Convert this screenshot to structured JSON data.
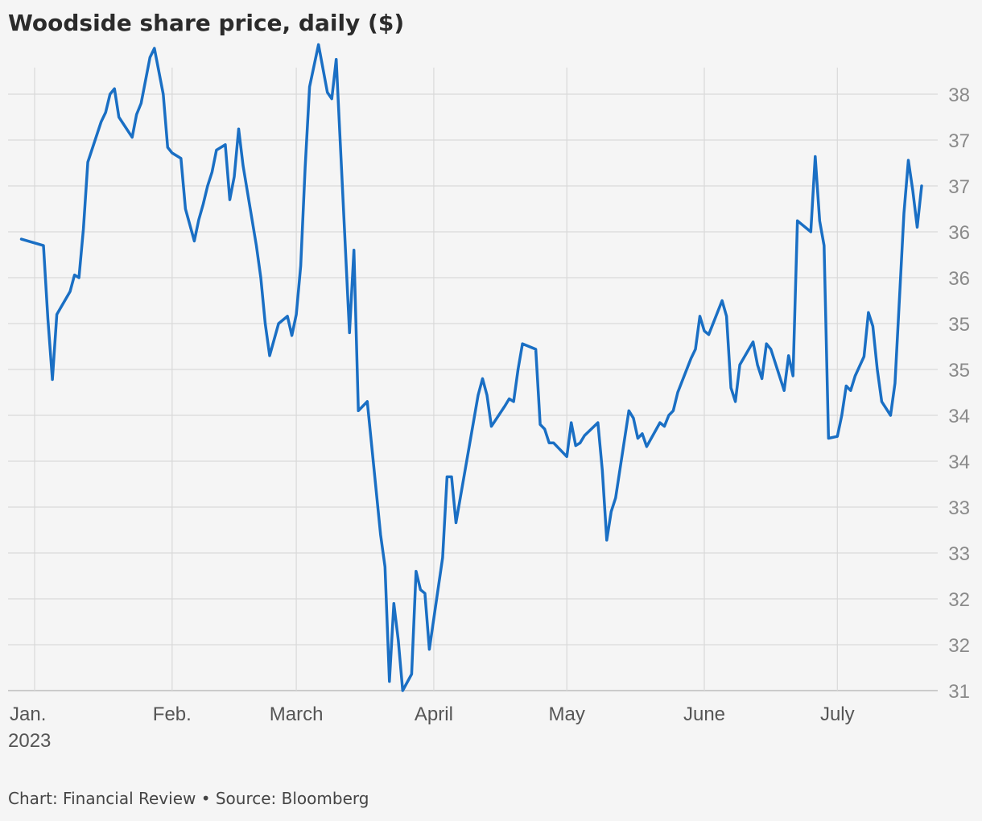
{
  "chart_data": {
    "type": "line",
    "title": "Woodside share price, daily ($)",
    "source": "Chart: Financial Review • Source: Bloomberg",
    "colors": {
      "line": "#1a6fc4",
      "grid": "#d9d9d9",
      "axis": "#cfcfcf"
    },
    "y_tick_values": [
      31,
      31.5,
      32,
      32.5,
      33,
      33.5,
      34,
      34.5,
      35,
      35.5,
      36,
      36.5,
      37,
      37.5,
      38
    ],
    "y_tick_labels": [
      "31",
      "32",
      "32",
      "33",
      "33",
      "34",
      "34",
      "35",
      "35",
      "36",
      "36",
      "37",
      "37",
      "38",
      "38"
    ],
    "ylim": [
      31,
      37.5
    ],
    "x_ticks": [
      {
        "date": "2023-01-01",
        "label": "Jan.",
        "sublabel": "2023"
      },
      {
        "date": "2023-02-01",
        "label": "Feb."
      },
      {
        "date": "2023-03-01",
        "label": "March"
      },
      {
        "date": "2023-04-01",
        "label": "April"
      },
      {
        "date": "2023-05-01",
        "label": "May"
      },
      {
        "date": "2023-06-01",
        "label": "June"
      },
      {
        "date": "2023-07-01",
        "label": "July"
      }
    ],
    "xlim": [
      "2022-12-30",
      "2023-07-20"
    ],
    "series": [
      {
        "points": [
          [
            "2022-12-29",
            35.92
          ],
          [
            "2023-01-03",
            35.85
          ],
          [
            "2023-01-04",
            35.05
          ],
          [
            "2023-01-05",
            34.39
          ],
          [
            "2023-01-06",
            35.1
          ],
          [
            "2023-01-09",
            35.35
          ],
          [
            "2023-01-10",
            35.53
          ],
          [
            "2023-01-11",
            35.5
          ],
          [
            "2023-01-12",
            36.03
          ],
          [
            "2023-01-13",
            36.76
          ],
          [
            "2023-01-16",
            37.2
          ],
          [
            "2023-01-17",
            37.3
          ],
          [
            "2023-01-18",
            37.5
          ],
          [
            "2023-01-19",
            37.56
          ],
          [
            "2023-01-20",
            37.25
          ],
          [
            "2023-01-23",
            37.03
          ],
          [
            "2023-01-24",
            37.28
          ],
          [
            "2023-01-25",
            37.4
          ],
          [
            "2023-01-27",
            37.9
          ],
          [
            "2023-01-28",
            38.0
          ],
          [
            "2023-01-30",
            37.5
          ],
          [
            "2023-01-31",
            36.92
          ],
          [
            "2023-02-01",
            36.86
          ],
          [
            "2023-02-03",
            36.8
          ],
          [
            "2023-02-04",
            36.25
          ],
          [
            "2023-02-06",
            35.9
          ],
          [
            "2023-02-07",
            36.13
          ],
          [
            "2023-02-08",
            36.3
          ],
          [
            "2023-02-09",
            36.5
          ],
          [
            "2023-02-10",
            36.65
          ],
          [
            "2023-02-11",
            36.89
          ],
          [
            "2023-02-13",
            36.95
          ],
          [
            "2023-02-14",
            36.35
          ],
          [
            "2023-02-15",
            36.6
          ],
          [
            "2023-02-16",
            37.12
          ],
          [
            "2023-02-17",
            36.72
          ],
          [
            "2023-02-20",
            35.85
          ],
          [
            "2023-02-21",
            35.5
          ],
          [
            "2023-02-22",
            35.0
          ],
          [
            "2023-02-23",
            34.65
          ],
          [
            "2023-02-25",
            35.0
          ],
          [
            "2023-02-27",
            35.08
          ],
          [
            "2023-02-28",
            34.87
          ],
          [
            "2023-03-01",
            35.1
          ],
          [
            "2023-03-02",
            35.63
          ],
          [
            "2023-03-03",
            36.7
          ],
          [
            "2023-03-04",
            37.58
          ],
          [
            "2023-03-06",
            38.04
          ],
          [
            "2023-03-08",
            37.52
          ],
          [
            "2023-03-09",
            37.45
          ],
          [
            "2023-03-10",
            37.88
          ],
          [
            "2023-03-13",
            34.9
          ],
          [
            "2023-03-14",
            35.8
          ],
          [
            "2023-03-15",
            34.05
          ],
          [
            "2023-03-17",
            34.15
          ],
          [
            "2023-03-20",
            32.7
          ],
          [
            "2023-03-21",
            32.35
          ],
          [
            "2023-03-22",
            31.1
          ],
          [
            "2023-03-23",
            31.95
          ],
          [
            "2023-03-24",
            31.55
          ],
          [
            "2023-03-25",
            31.0
          ],
          [
            "2023-03-27",
            31.18
          ],
          [
            "2023-03-28",
            32.3
          ],
          [
            "2023-03-29",
            32.1
          ],
          [
            "2023-03-30",
            32.06
          ],
          [
            "2023-03-31",
            31.45
          ],
          [
            "2023-04-03",
            32.45
          ],
          [
            "2023-04-04",
            33.33
          ],
          [
            "2023-04-05",
            33.33
          ],
          [
            "2023-04-06",
            32.83
          ],
          [
            "2023-04-11",
            34.22
          ],
          [
            "2023-04-12",
            34.4
          ],
          [
            "2023-04-13",
            34.22
          ],
          [
            "2023-04-14",
            33.88
          ],
          [
            "2023-04-17",
            34.1
          ],
          [
            "2023-04-18",
            34.18
          ],
          [
            "2023-04-19",
            34.15
          ],
          [
            "2023-04-20",
            34.5
          ],
          [
            "2023-04-21",
            34.78
          ],
          [
            "2023-04-24",
            34.72
          ],
          [
            "2023-04-25",
            33.9
          ],
          [
            "2023-04-26",
            33.85
          ],
          [
            "2023-04-27",
            33.7
          ],
          [
            "2023-04-28",
            33.7
          ],
          [
            "2023-05-01",
            33.55
          ],
          [
            "2023-05-02",
            33.92
          ],
          [
            "2023-05-03",
            33.67
          ],
          [
            "2023-05-04",
            33.7
          ],
          [
            "2023-05-05",
            33.78
          ],
          [
            "2023-05-08",
            33.92
          ],
          [
            "2023-05-09",
            33.4
          ],
          [
            "2023-05-10",
            32.64
          ],
          [
            "2023-05-11",
            32.95
          ],
          [
            "2023-05-12",
            33.1
          ],
          [
            "2023-05-15",
            34.05
          ],
          [
            "2023-05-16",
            33.97
          ],
          [
            "2023-05-17",
            33.75
          ],
          [
            "2023-05-18",
            33.8
          ],
          [
            "2023-05-19",
            33.66
          ],
          [
            "2023-05-22",
            33.92
          ],
          [
            "2023-05-23",
            33.88
          ],
          [
            "2023-05-24",
            34.0
          ],
          [
            "2023-05-25",
            34.05
          ],
          [
            "2023-05-26",
            34.25
          ],
          [
            "2023-05-29",
            34.62
          ],
          [
            "2023-05-30",
            34.72
          ],
          [
            "2023-05-31",
            35.08
          ],
          [
            "2023-06-01",
            34.92
          ],
          [
            "2023-06-02",
            34.88
          ],
          [
            "2023-06-05",
            35.25
          ],
          [
            "2023-06-06",
            35.08
          ],
          [
            "2023-06-07",
            34.3
          ],
          [
            "2023-06-08",
            34.15
          ],
          [
            "2023-06-09",
            34.55
          ],
          [
            "2023-06-12",
            34.8
          ],
          [
            "2023-06-13",
            34.55
          ],
          [
            "2023-06-14",
            34.4
          ],
          [
            "2023-06-15",
            34.78
          ],
          [
            "2023-06-16",
            34.72
          ],
          [
            "2023-06-19",
            34.27
          ],
          [
            "2023-06-20",
            34.65
          ],
          [
            "2023-06-21",
            34.43
          ],
          [
            "2023-06-22",
            36.12
          ],
          [
            "2023-06-25",
            36.0
          ],
          [
            "2023-06-26",
            36.82
          ],
          [
            "2023-06-27",
            36.12
          ],
          [
            "2023-06-28",
            35.85
          ],
          [
            "2023-06-29",
            33.75
          ],
          [
            "2023-07-01",
            33.77
          ],
          [
            "2023-07-02",
            34.0
          ],
          [
            "2023-07-03",
            34.32
          ],
          [
            "2023-07-04",
            34.27
          ],
          [
            "2023-07-05",
            34.43
          ],
          [
            "2023-07-07",
            34.64
          ],
          [
            "2023-07-08",
            35.12
          ],
          [
            "2023-07-09",
            34.97
          ],
          [
            "2023-07-10",
            34.5
          ],
          [
            "2023-07-11",
            34.15
          ],
          [
            "2023-07-13",
            34.0
          ],
          [
            "2023-07-14",
            34.35
          ],
          [
            "2023-07-15",
            35.28
          ],
          [
            "2023-07-16",
            36.2
          ],
          [
            "2023-07-17",
            36.78
          ],
          [
            "2023-07-18",
            36.45
          ],
          [
            "2023-07-19",
            36.05
          ],
          [
            "2023-07-20",
            36.5
          ]
        ]
      }
    ]
  }
}
